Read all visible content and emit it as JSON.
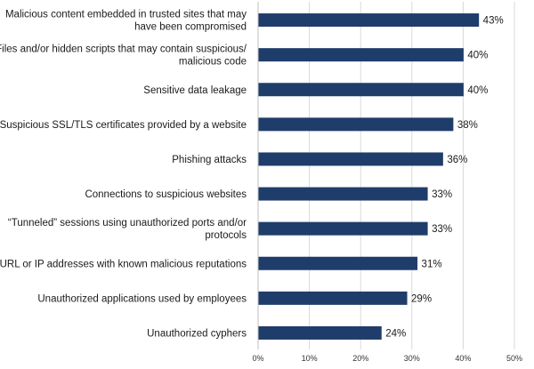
{
  "chart_data": {
    "type": "bar",
    "orientation": "horizontal",
    "title": "",
    "xlabel": "",
    "ylabel": "",
    "xlim": [
      0,
      50
    ],
    "x_ticks": [
      "0%",
      "10%",
      "20%",
      "30%",
      "40%",
      "50%"
    ],
    "grid": "vertical gridlines",
    "legend": "none",
    "bar_color": "#1f3d6b",
    "categories": [
      [
        "Malicious content embedded in trusted sites that may",
        "have been compromised"
      ],
      [
        "Files and/or hidden scripts that may contain suspicious/",
        "malicious code"
      ],
      [
        "Sensitive data leakage"
      ],
      [
        "Suspicious SSL/TLS certificates provided by a website"
      ],
      [
        "Phishing attacks"
      ],
      [
        "Connections to suspicious websites"
      ],
      [
        "“Tunneled” sessions using unauthorized ports and/or",
        "protocols"
      ],
      [
        "URL or IP addresses with known malicious reputations"
      ],
      [
        "Unauthorized applications used by employees"
      ],
      [
        "Unauthorized cyphers"
      ]
    ],
    "values": [
      43,
      40,
      40,
      38,
      36,
      33,
      33,
      31,
      29,
      24
    ],
    "value_labels": [
      "43%",
      "40%",
      "40%",
      "38%",
      "36%",
      "33%",
      "33%",
      "31%",
      "29%",
      "24%"
    ]
  }
}
